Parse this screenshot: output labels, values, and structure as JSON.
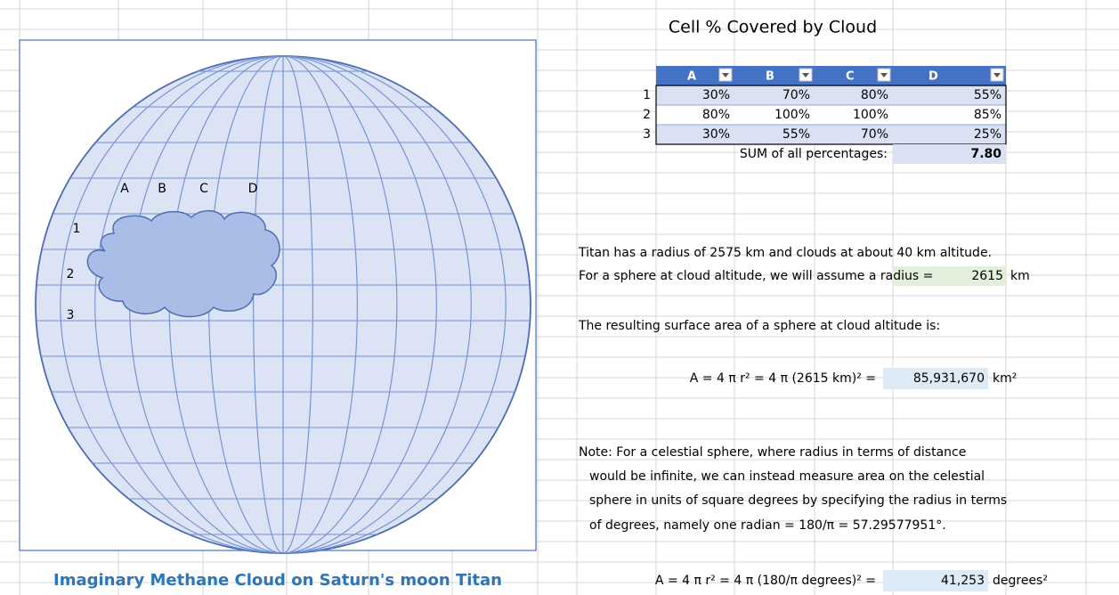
{
  "diagram": {
    "column_labels": [
      "A",
      "B",
      "C",
      "D"
    ],
    "row_labels": [
      "1",
      "2",
      "3"
    ],
    "caption": "Imaginary Methane Cloud on Saturn's moon Titan"
  },
  "table": {
    "title": "Cell % Covered by Cloud",
    "headers": [
      "A",
      "B",
      "C",
      "D"
    ],
    "rows": [
      {
        "label": "1",
        "cells": [
          "30%",
          "70%",
          "80%",
          "55%"
        ]
      },
      {
        "label": "2",
        "cells": [
          "80%",
          "100%",
          "100%",
          "85%"
        ]
      },
      {
        "label": "3",
        "cells": [
          "30%",
          "55%",
          "70%",
          "25%"
        ]
      }
    ],
    "sum_label": "SUM of all percentages:",
    "sum_value": "7.80"
  },
  "text": {
    "line1": "Titan has a radius of 2575 km and clouds at about 40 km altitude.",
    "line2": "For a sphere at cloud altitude, we will assume a radius =",
    "radius_value": "2615",
    "radius_unit": "km",
    "line3": "The resulting surface area of a sphere at cloud altitude is:",
    "formula1": "A = 4 π r² = 4 π (2615 km)²  =",
    "area1_value": "85,931,670",
    "area1_unit": "km²",
    "note": [
      "Note: For a celestial sphere, where radius in terms of distance",
      "would be infinite, we can instead measure area on the celestial",
      "sphere in units  of square degrees by specifying the radius in terms",
      "of degrees, namely one radian = 180/π = 57.29577951°."
    ],
    "formula2": "A = 4 π r² = 4 π (180/π degrees)²  =",
    "area2_value": "41,253",
    "area2_unit": "degrees²"
  }
}
